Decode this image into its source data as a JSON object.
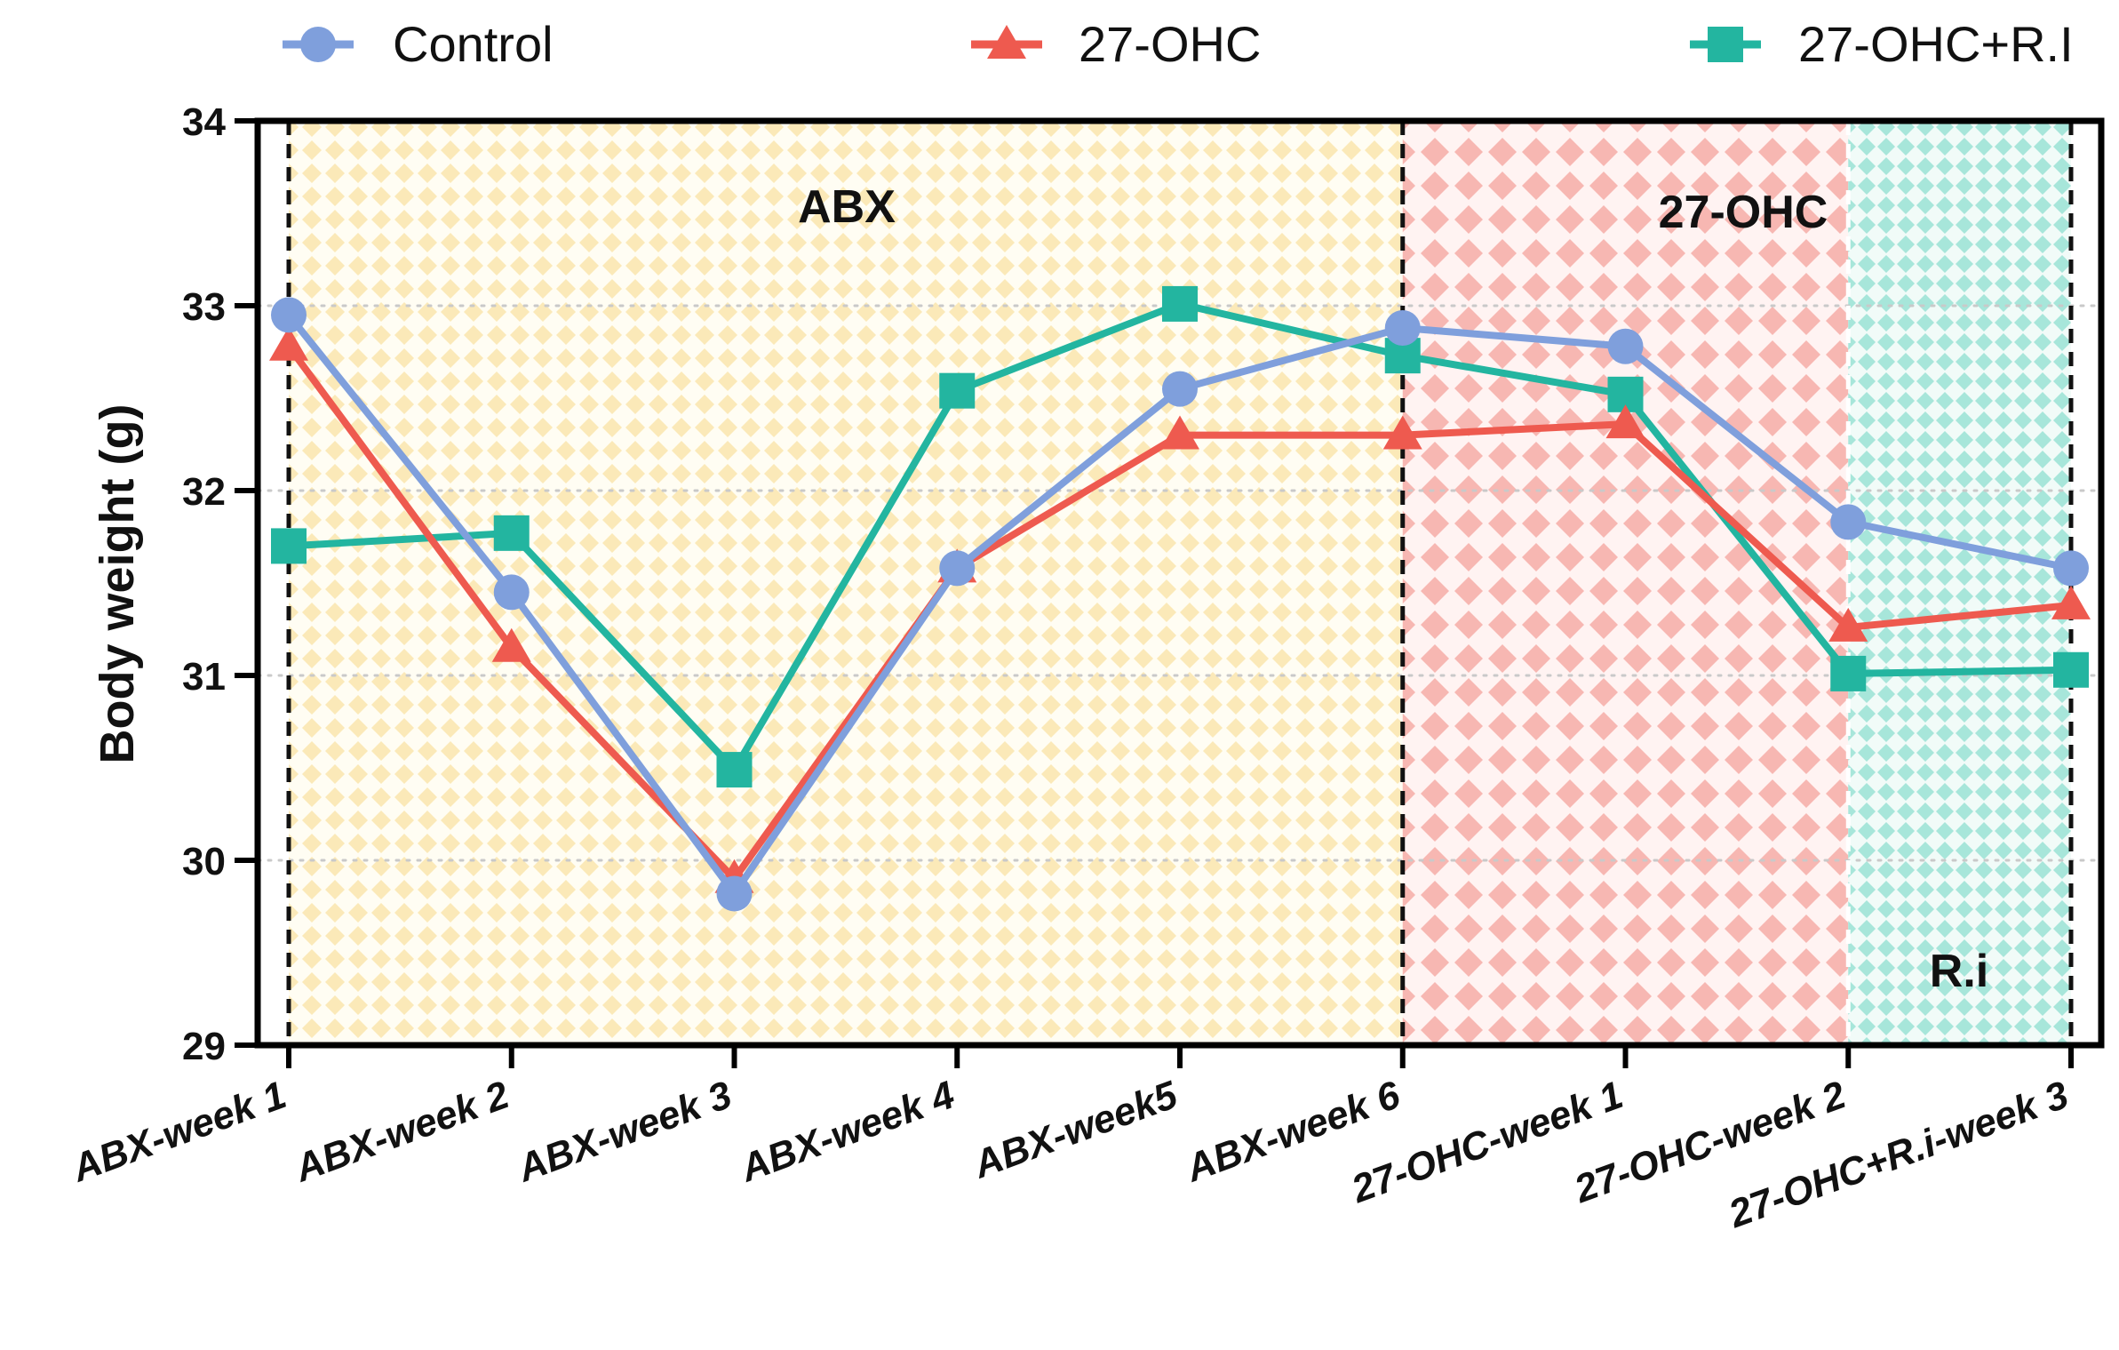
{
  "chart_data": {
    "type": "line",
    "title": "",
    "xlabel": "",
    "ylabel": "Body weight (g)",
    "ylim": [
      29,
      34
    ],
    "yticks": [
      "29",
      "30",
      "31",
      "32",
      "33",
      "34"
    ],
    "grid": "horizontal dotted",
    "legend_position": "top",
    "categories": [
      "ABX-week 1",
      "ABX-week 2",
      "ABX-week 3",
      "ABX-week 4",
      "ABX-week5",
      "ABX-week 6",
      "27-OHC-week 1",
      "27-OHC-week 2",
      "27-OHC+R.i-week 3"
    ],
    "series": [
      {
        "name": "Control",
        "marker": "circle",
        "color": "#7f9fdc",
        "values": [
          32.95,
          31.45,
          29.82,
          31.58,
          32.55,
          32.88,
          32.78,
          31.83,
          31.58
        ]
      },
      {
        "name": "27-OHC",
        "marker": "triangle",
        "color": "#ee5a4f",
        "values": [
          32.78,
          31.15,
          29.9,
          31.58,
          32.3,
          32.3,
          32.36,
          31.26,
          31.38
        ]
      },
      {
        "name": "27-OHC+R.I",
        "marker": "square",
        "color": "#23b5a0",
        "values": [
          31.7,
          31.77,
          30.49,
          32.54,
          33.01,
          32.73,
          32.52,
          31.01,
          31.03
        ]
      }
    ],
    "regions": [
      {
        "label": "ABX",
        "from_category": 0,
        "to_category": 5,
        "color": "#fbe9b8"
      },
      {
        "label": "27-OHC",
        "from_category": 5,
        "to_category": 7,
        "color": "#f7b1ad"
      },
      {
        "label": "R.i",
        "from_category": 7,
        "to_category": 8,
        "color": "#a7e6da"
      }
    ]
  }
}
